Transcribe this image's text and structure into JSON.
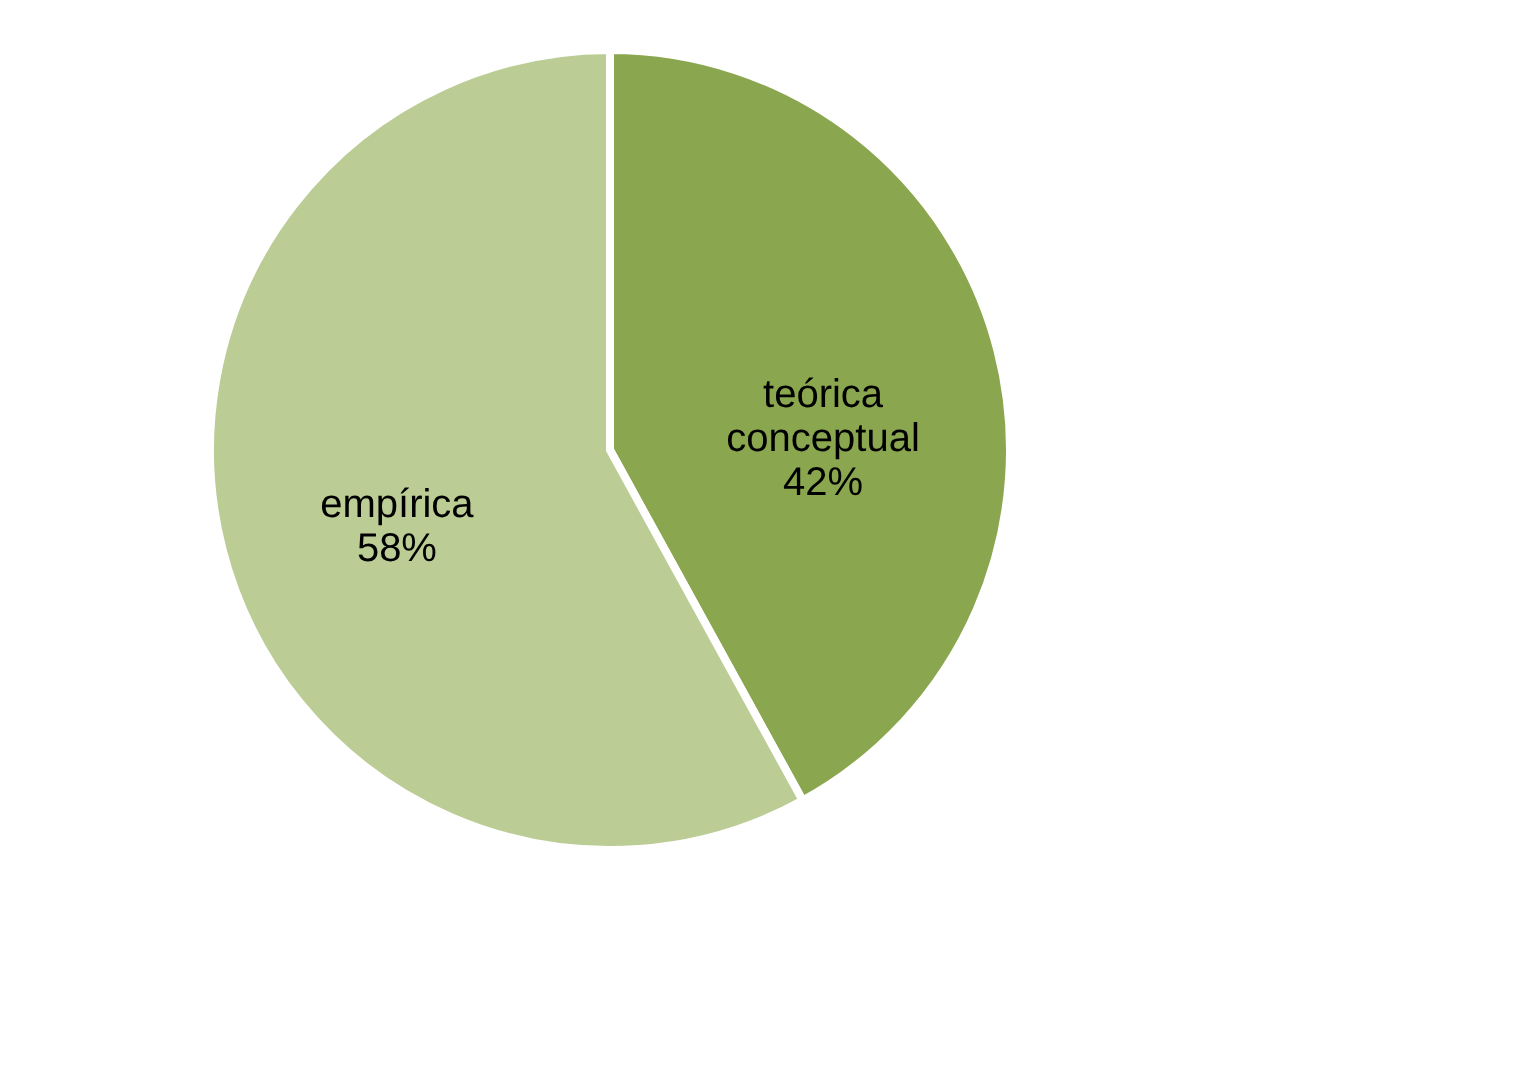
{
  "chart_data": {
    "type": "pie",
    "categories": [
      "teórica conceptual",
      "empírica"
    ],
    "values": [
      42,
      58
    ],
    "colors": [
      "#8aa64e",
      "#bbcc95"
    ],
    "value_labels": [
      "42%",
      "58%"
    ],
    "legend": false
  }
}
